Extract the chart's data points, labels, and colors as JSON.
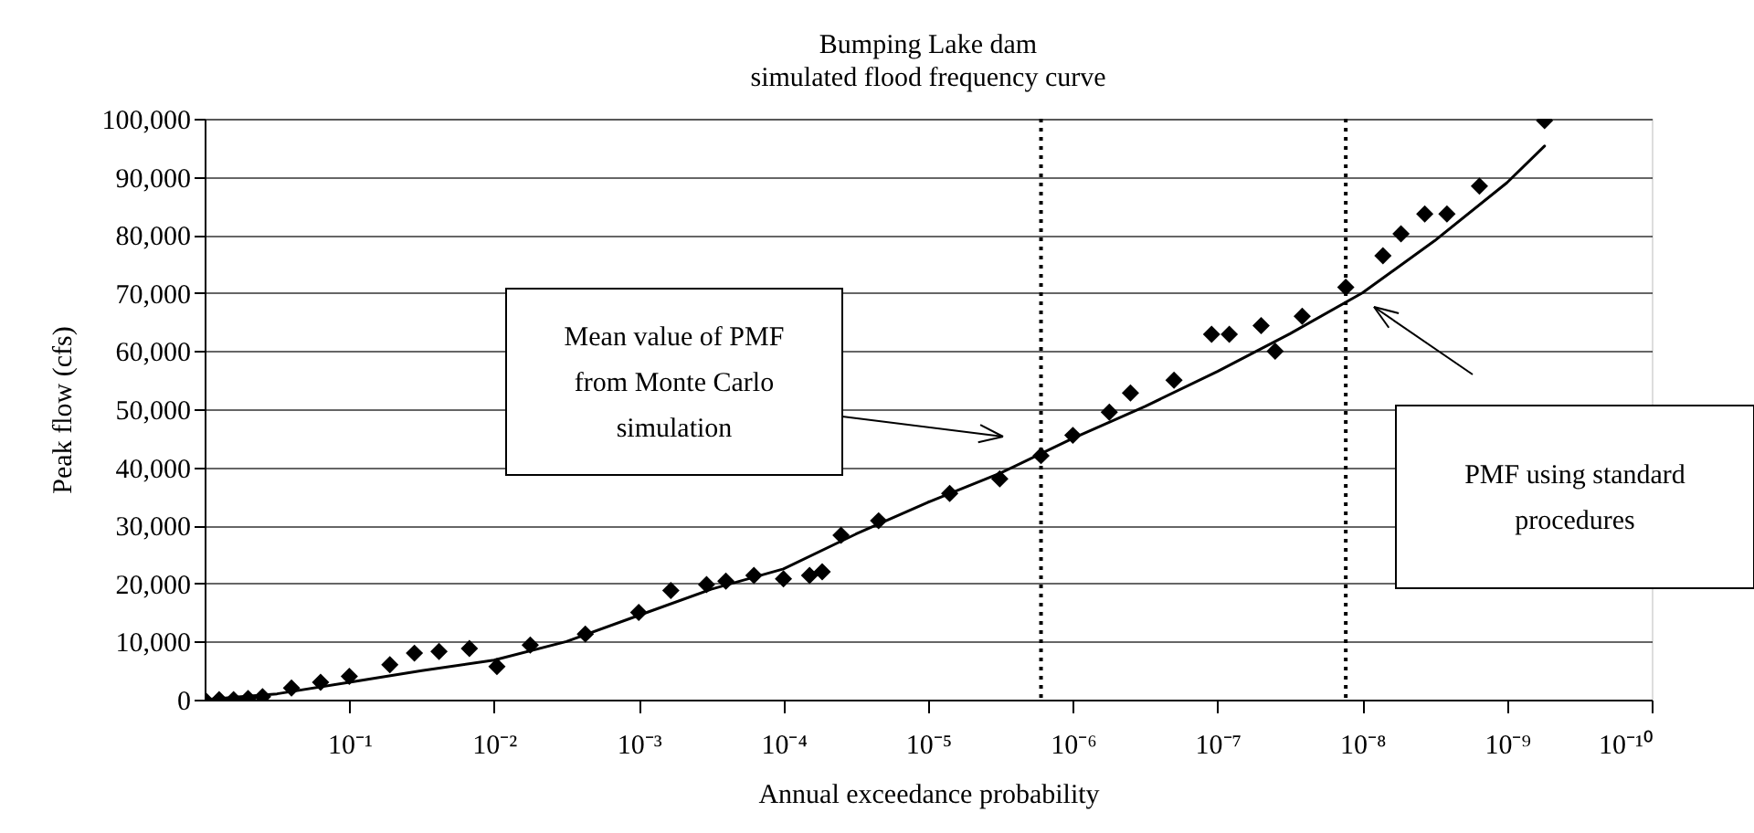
{
  "chart_data": {
    "type": "scatter",
    "title": [
      "Bumping Lake dam",
      "simulated flood frequency curve"
    ],
    "xlabel": "Annual exceedance probability",
    "ylabel": "Peak flow (cfs)",
    "log": "x",
    "xlim": [
      1,
      1e-10
    ],
    "xticks": [
      {
        "value": 0.1,
        "label": "10⁻¹"
      },
      {
        "value": 0.01,
        "label": "10⁻²"
      },
      {
        "value": 0.001,
        "label": "10⁻³"
      },
      {
        "value": 0.0001,
        "label": "10⁻⁴"
      },
      {
        "value": 1e-05,
        "label": "10⁻⁵"
      },
      {
        "value": 1e-06,
        "label": "10⁻⁶"
      },
      {
        "value": 1e-07,
        "label": "10⁻⁷"
      },
      {
        "value": 1e-08,
        "label": "10⁻⁸"
      },
      {
        "value": 1e-09,
        "label": "10⁻⁹"
      },
      {
        "value": 1e-10,
        "label": "10⁻¹⁰"
      }
    ],
    "ylim": [
      0,
      100000
    ],
    "yticks": [
      0,
      {
        "value": 10000,
        "label": "10,000"
      },
      {
        "value": 20000,
        "label": "20,000"
      },
      {
        "value": 30000,
        "label": "30,000"
      },
      {
        "value": 40000,
        "label": "40,000"
      },
      {
        "value": 50000,
        "label": "50,000"
      },
      {
        "value": 60000,
        "label": "60,000"
      },
      {
        "value": 70000,
        "label": "70,000"
      },
      {
        "value": 80000,
        "label": "80,000"
      },
      {
        "value": 90000,
        "label": "90,000"
      },
      {
        "value": 100000,
        "label": "100,000"
      }
    ],
    "grid": "y",
    "series": [
      {
        "marker": "diamond",
        "color": "#000000",
        "x": [
          1,
          0.794,
          0.631,
          0.501,
          0.398,
          0.251,
          0.158,
          0.1,
          0.0525,
          0.0355,
          0.024,
          0.0148,
          0.00955,
          0.00562,
          0.00234,
          0.001,
          0.0006,
          0.00034,
          0.00025,
          0.00016,
          0.0001,
          6.6e-05,
          5.4e-05,
          4e-05,
          2.2e-05,
          7.1e-06,
          3.2e-06,
          1.66e-06,
          1e-06,
          5.6e-07,
          4e-07,
          2e-07,
          1.1e-07,
          8.3e-08,
          5e-08,
          4e-08,
          2.6e-08,
          1.3e-08,
          7.2e-09,
          5.4e-09,
          3.7e-09,
          2.6e-09,
          1.55e-09,
          5.5e-10
        ],
        "values": [
          0,
          0,
          0,
          200,
          500,
          2000,
          3000,
          4000,
          6000,
          8000,
          8300,
          8800,
          5700,
          9400,
          11300,
          15000,
          18800,
          19800,
          20400,
          21400,
          20800,
          21400,
          22000,
          28300,
          30800,
          35500,
          38000,
          42000,
          45500,
          49500,
          52800,
          55000,
          62900,
          62900,
          64400,
          60000,
          66000,
          71000,
          76400,
          80200,
          83600,
          83600,
          88400,
          99700
        ]
      },
      {
        "type": "line",
        "line_style": "solid",
        "color": "#000000",
        "x": [
          1,
          0.316,
          0.1,
          0.0316,
          0.01,
          0.00316,
          0.001,
          0.000316,
          0.0001,
          3.16e-05,
          1e-05,
          3.16e-06,
          1e-06,
          3.16e-07,
          1e-07,
          3.16e-08,
          1e-08,
          3.16e-09,
          1e-09,
          5.5e-10
        ],
        "values": [
          0,
          1000,
          3000,
          5000,
          6800,
          10000,
          14500,
          19000,
          22500,
          28500,
          34000,
          39000,
          45000,
          50500,
          56500,
          63000,
          70000,
          79000,
          89000,
          95300
        ]
      }
    ],
    "ref_lines": [
      {
        "axis": "x",
        "value": 1.66e-06,
        "color": "#000000",
        "line_style": "dotted"
      },
      {
        "axis": "x",
        "value": 1.3e-08,
        "color": "#000000",
        "line_style": "dotted"
      }
    ],
    "annotations": [
      "Mean value of PMF\nfrom Monte Carlo\nsimulation",
      "PMF using standard\nprocedures"
    ]
  }
}
